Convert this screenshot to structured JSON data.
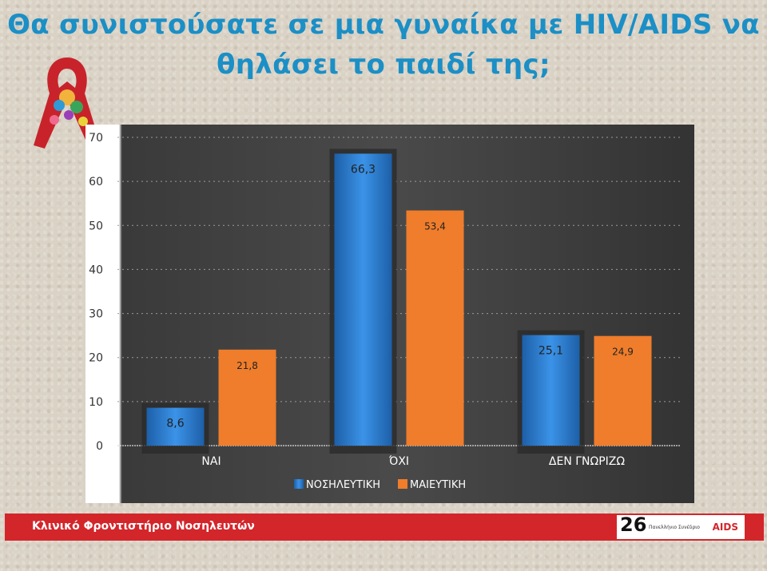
{
  "title": "Θα συνιστούσατε σε μια γυναίκα με HIV/AIDS να θηλάσει το παιδί της;",
  "footer": {
    "left_text": "Κλινικό Φροντιστήριο Νοσηλευτών",
    "logo_number": "26",
    "logo_sub": "Πανελλήνιο Συνέδριο",
    "logo_aids": "AIDS"
  },
  "chart_data": {
    "type": "bar",
    "categories": [
      "ΝΑΙ",
      "ΌΧΙ",
      "ΔΕΝ ΓΝΩΡΙΖΩ"
    ],
    "series": [
      {
        "name": "ΝΟΣΗΛΕΥΤΙΚΗ",
        "values": [
          8.6,
          66.3,
          25.1
        ],
        "labels": [
          "8,6",
          "66,3",
          "25,1"
        ],
        "color": "#2a7fd6"
      },
      {
        "name": "ΜΑΙΕΥΤΙΚΗ",
        "values": [
          21.8,
          53.4,
          24.9
        ],
        "labels": [
          "21,8",
          "53,4",
          "24,9"
        ],
        "color": "#ef7d2b"
      }
    ],
    "ylim": [
      0,
      70
    ],
    "yticks": [
      "0",
      "10",
      "20",
      "30",
      "40",
      "50",
      "60",
      "70"
    ],
    "grid": true,
    "legend": "bottom",
    "background": "#3f3f3f"
  }
}
